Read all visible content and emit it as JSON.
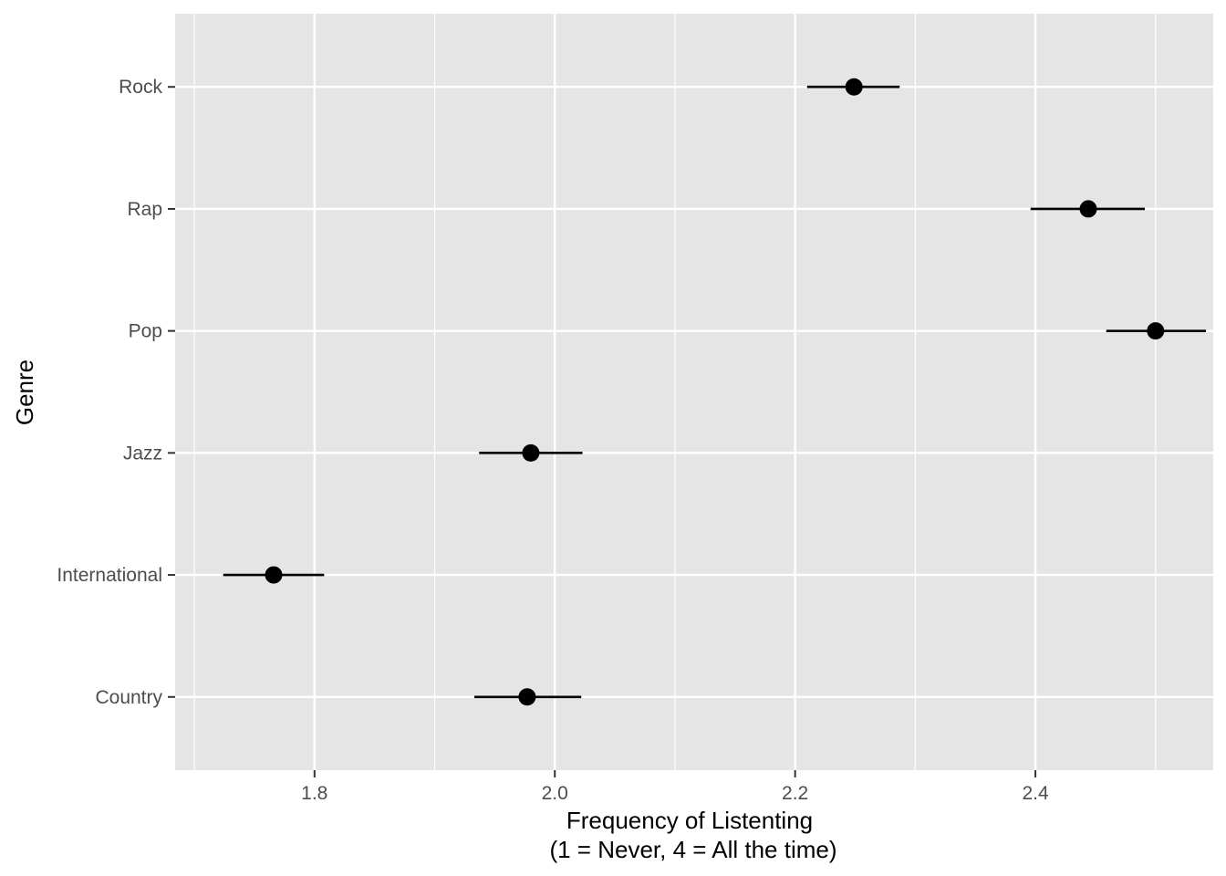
{
  "chart_data": {
    "type": "scatter",
    "title": "",
    "xlabel_lines": [
      "Frequency of Listenting",
      "(1 = Never, 4 = All the time)"
    ],
    "ylabel": "Genre",
    "xlim": [
      1.684,
      2.548
    ],
    "x_ticks": [
      1.8,
      2.0,
      2.2,
      2.4
    ],
    "x_tick_labels": [
      "1.8",
      "2.0",
      "2.2",
      "2.4"
    ],
    "x_minor_ticks": [
      1.7,
      1.9,
      2.1,
      2.3,
      2.5
    ],
    "categories": [
      "Country",
      "International",
      "Jazz",
      "Pop",
      "Rap",
      "Rock"
    ],
    "points": [
      {
        "genre": "Country",
        "mean": 1.977,
        "low": 1.933,
        "high": 2.022
      },
      {
        "genre": "International",
        "mean": 1.766,
        "low": 1.724,
        "high": 1.808
      },
      {
        "genre": "Jazz",
        "mean": 1.98,
        "low": 1.937,
        "high": 2.023
      },
      {
        "genre": "Pop",
        "mean": 2.5,
        "low": 2.459,
        "high": 2.542
      },
      {
        "genre": "Rap",
        "mean": 2.444,
        "low": 2.396,
        "high": 2.491
      },
      {
        "genre": "Rock",
        "mean": 2.249,
        "low": 2.21,
        "high": 2.287
      }
    ],
    "grid": true,
    "legend": "none",
    "colors": {
      "panel": "#e5e5e5",
      "grid": "#ffffff",
      "point": "#000000",
      "tick_text": "#4d4d4d"
    }
  }
}
